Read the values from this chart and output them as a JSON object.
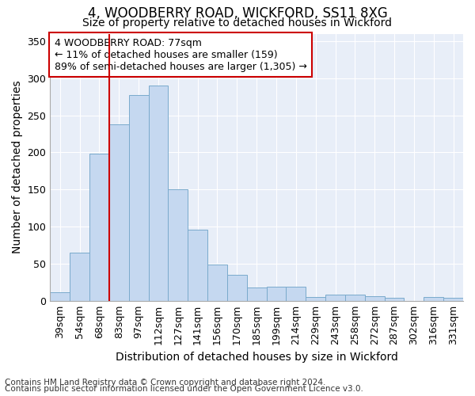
{
  "title1": "4, WOODBERRY ROAD, WICKFORD, SS11 8XG",
  "title2": "Size of property relative to detached houses in Wickford",
  "xlabel": "Distribution of detached houses by size in Wickford",
  "ylabel": "Number of detached properties",
  "categories": [
    "39sqm",
    "54sqm",
    "68sqm",
    "83sqm",
    "97sqm",
    "112sqm",
    "127sqm",
    "141sqm",
    "156sqm",
    "170sqm",
    "185sqm",
    "199sqm",
    "214sqm",
    "229sqm",
    "243sqm",
    "258sqm",
    "272sqm",
    "287sqm",
    "302sqm",
    "316sqm",
    "331sqm"
  ],
  "values": [
    12,
    65,
    198,
    238,
    277,
    290,
    150,
    96,
    49,
    35,
    18,
    19,
    19,
    5,
    8,
    8,
    6,
    4,
    0,
    5,
    4
  ],
  "bar_color": "#c5d8f0",
  "bar_edge_color": "#7aaacc",
  "vline_color": "#cc0000",
  "vline_index": 3,
  "annotation_text": "4 WOODBERRY ROAD: 77sqm\n← 11% of detached houses are smaller (159)\n89% of semi-detached houses are larger (1,305) →",
  "annotation_box_facecolor": "#ffffff",
  "annotation_box_edgecolor": "#cc0000",
  "ylim": [
    0,
    360
  ],
  "yticks": [
    0,
    50,
    100,
    150,
    200,
    250,
    300,
    350
  ],
  "background_color": "#e8eef8",
  "footer1": "Contains HM Land Registry data © Crown copyright and database right 2024.",
  "footer2": "Contains public sector information licensed under the Open Government Licence v3.0.",
  "title_fontsize": 12,
  "subtitle_fontsize": 10,
  "axis_label_fontsize": 10,
  "tick_fontsize": 9,
  "annotation_fontsize": 9,
  "footer_fontsize": 7.5
}
